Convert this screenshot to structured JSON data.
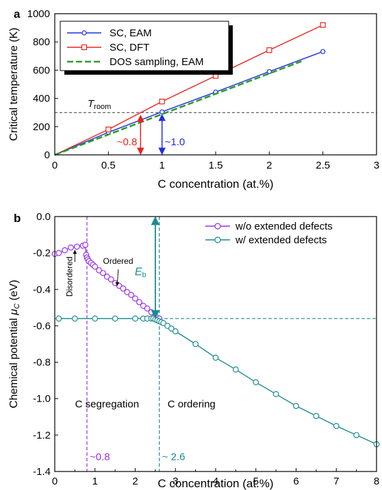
{
  "chart_data": [
    {
      "panel": "a",
      "type": "line",
      "xlabel": "C concentration (at.%)",
      "ylabel": "Critical temperature (K)",
      "xlim": [
        0,
        3
      ],
      "ylim": [
        0,
        1000
      ],
      "xticks": [
        "0",
        "0.5",
        "1",
        "1.5",
        "2",
        "2.5",
        "3"
      ],
      "yticks": [
        "0",
        "200",
        "400",
        "600",
        "800",
        "1000"
      ],
      "grid": false,
      "legend_position": "top-left",
      "series": [
        {
          "name": "SC, EAM",
          "color": "#1f2de0",
          "marker": "circle",
          "style": "solid",
          "x": [
            0,
            0.5,
            1,
            1.5,
            2,
            2.5
          ],
          "y": [
            0,
            160,
            305,
            445,
            590,
            732
          ]
        },
        {
          "name": "SC, DFT",
          "color": "#e8231e",
          "marker": "square",
          "style": "solid",
          "x": [
            0,
            0.5,
            1,
            1.5,
            2,
            2.5
          ],
          "y": [
            0,
            180,
            378,
            560,
            742,
            920
          ]
        },
        {
          "name": "DOS sampling, EAM",
          "color": "#2a9d2a",
          "marker": "none",
          "style": "dashed",
          "x": [
            0,
            2.3
          ],
          "y": [
            0,
            663
          ]
        }
      ],
      "annotations": {
        "troom_label_main": "T",
        "troom_label_sub": "room",
        "troom_value": 300,
        "red_label": "~0.8",
        "red_x": 0.8,
        "blue_label": "~1.0",
        "blue_x": 1.0
      }
    },
    {
      "panel": "b",
      "type": "line",
      "xlabel": "C concentration (at.%)",
      "ylabel_main": "Chemical potential ",
      "ylabel_mu": "μ",
      "ylabel_sub": "C",
      "ylabel_unit": " (eV)",
      "xlim": [
        0,
        8
      ],
      "ylim": [
        -1.4,
        0.0
      ],
      "xticks": [
        "0",
        "1",
        "2",
        "3",
        "4",
        "5",
        "6",
        "7",
        "8"
      ],
      "yticks": [
        "0.0",
        "-0.2",
        "-0.4",
        "-0.6",
        "-0.8",
        "-1.0",
        "-1.2",
        "-1.4"
      ],
      "grid": false,
      "legend_position": "top-right",
      "series": [
        {
          "name": "w/o extended defects",
          "color": "#9b30e8",
          "marker": "circle",
          "x": [
            0.0,
            0.1,
            0.25,
            0.4,
            0.55,
            0.7,
            0.76,
            0.78,
            0.8,
            0.82,
            0.85,
            0.9,
            0.95,
            1.0,
            1.1,
            1.2,
            1.3,
            1.4,
            1.5,
            1.6,
            1.7,
            1.8,
            1.9,
            2.0,
            2.1,
            2.2,
            2.3,
            2.4,
            2.5,
            2.6
          ],
          "y": [
            -0.205,
            -0.2,
            -0.185,
            -0.17,
            -0.165,
            -0.16,
            -0.155,
            -0.21,
            -0.225,
            -0.235,
            -0.245,
            -0.255,
            -0.265,
            -0.275,
            -0.295,
            -0.31,
            -0.33,
            -0.345,
            -0.365,
            -0.38,
            -0.395,
            -0.415,
            -0.43,
            -0.45,
            -0.47,
            -0.49,
            -0.505,
            -0.525,
            -0.545,
            -0.56
          ]
        },
        {
          "name": "w/   extended defects",
          "color": "#1a8a8f",
          "marker": "circle",
          "x": [
            0.1,
            0.5,
            1.0,
            1.5,
            2.0,
            2.2,
            2.3,
            2.4,
            2.45,
            2.5,
            2.55,
            2.6,
            2.65,
            2.7,
            2.8,
            2.9,
            3.0,
            3.5,
            4.0,
            4.5,
            5.0,
            5.5,
            6.0,
            6.5,
            7.0,
            7.5,
            8.0
          ],
          "y": [
            -0.56,
            -0.56,
            -0.56,
            -0.56,
            -0.56,
            -0.56,
            -0.56,
            -0.56,
            -0.56,
            -0.565,
            -0.57,
            -0.575,
            -0.58,
            -0.585,
            -0.6,
            -0.615,
            -0.63,
            -0.7,
            -0.775,
            -0.84,
            -0.91,
            -0.975,
            -1.04,
            -1.095,
            -1.15,
            -1.2,
            -1.25
          ]
        }
      ],
      "annotations": {
        "purple_vline_x": 0.8,
        "teal_vline_x": 2.6,
        "teal_hline_y": -0.56,
        "eb_main": "E",
        "eb_sub": "b",
        "ordered": "Ordered",
        "disordered": "Disordered",
        "c_segregation": "C segregation",
        "c_ordering": "C ordering",
        "purple_label": "~0.8",
        "teal_label": "~ 2.6"
      }
    }
  ]
}
